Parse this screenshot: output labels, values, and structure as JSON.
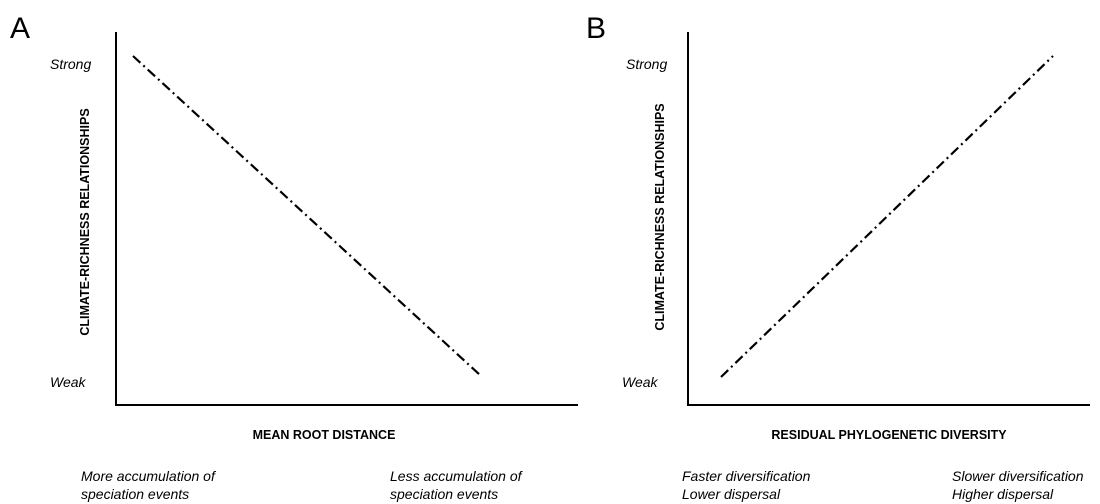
{
  "chart_data": [
    {
      "type": "line",
      "panel_label": "A",
      "xlabel": "MEAN ROOT DISTANCE",
      "ylabel": "CLIMATE-RICHNESS RELATIONSHIPS",
      "ytick_labels": {
        "high": "Strong",
        "low": "Weak"
      },
      "x_annotations": {
        "left": [
          "More accumulation of",
          "speciation events"
        ],
        "right": [
          "Less accumulation of",
          "speciation events"
        ]
      },
      "series": [
        {
          "x": [
            0,
            1
          ],
          "y": [
            1,
            0
          ]
        }
      ],
      "xlim": [
        0,
        1
      ],
      "ylim": [
        0,
        1
      ],
      "grid": false,
      "line_style": "dash-dot"
    },
    {
      "type": "line",
      "panel_label": "B",
      "xlabel": "RESIDUAL PHYLOGENETIC DIVERSITY",
      "ylabel": "CLIMATE-RICHNESS RELATIONSHIPS",
      "ytick_labels": {
        "high": "Strong",
        "low": "Weak"
      },
      "x_annotations": {
        "left": [
          "Faster diversification",
          "Lower dispersal"
        ],
        "right": [
          "Slower diversification",
          "Higher dispersal"
        ]
      },
      "series": [
        {
          "x": [
            0,
            1
          ],
          "y": [
            0,
            1
          ]
        }
      ],
      "xlim": [
        0,
        1
      ],
      "ylim": [
        0,
        1
      ],
      "grid": false,
      "line_style": "dash-dot"
    }
  ]
}
